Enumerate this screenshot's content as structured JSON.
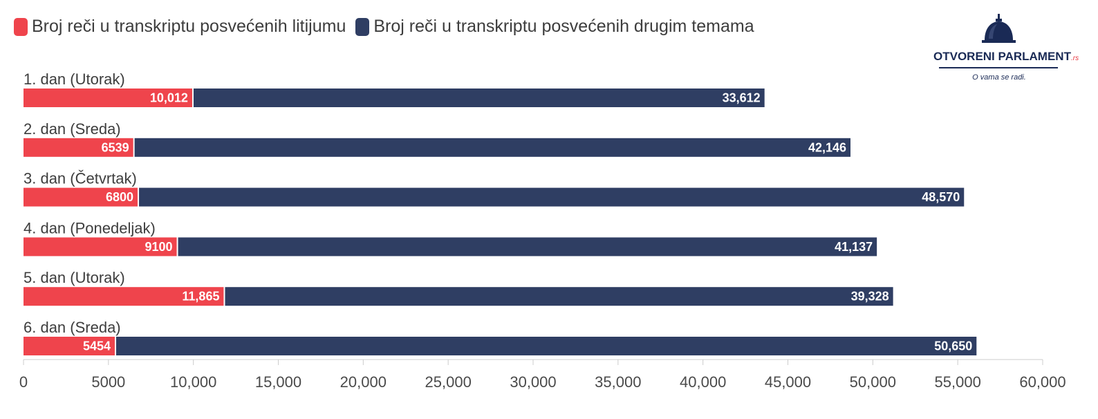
{
  "legend": [
    {
      "label": "Broj reči u transkriptu posvećenih litijumu",
      "color": "#ef444c"
    },
    {
      "label": "Broj reči u transkriptu posvećenih drugim temama",
      "color": "#2f3e63"
    }
  ],
  "logo": {
    "name_main": "OTVORENI PARLAMENT",
    "name_suffix": ".rs",
    "tagline": "O vama se radi."
  },
  "chart_data": {
    "type": "bar",
    "orientation": "horizontal",
    "stacked": true,
    "categories": [
      "1. dan (Utorak)",
      "2. dan (Sreda)",
      "3. dan (Četvrtak)",
      "4. dan (Ponedeljak)",
      "5. dan (Utorak)",
      "6. dan (Sreda)"
    ],
    "series": [
      {
        "name": "Broj reči u transkriptu posvećenih litijumu",
        "color": "#ef444c",
        "values": [
          10012,
          6539,
          6800,
          9100,
          11865,
          5454
        ],
        "labels": [
          "10,012",
          "6539",
          "6800",
          "9100",
          "11,865",
          "5454"
        ]
      },
      {
        "name": "Broj reči u transkriptu posvećenih drugim temama",
        "color": "#2f3e63",
        "values": [
          33612,
          42146,
          48570,
          41137,
          39328,
          50650
        ],
        "labels": [
          "33,612",
          "42,146",
          "48,570",
          "41,137",
          "39,328",
          "50,650"
        ]
      }
    ],
    "xlim": [
      0,
      60000
    ],
    "ticks": [
      0,
      5000,
      10000,
      15000,
      20000,
      25000,
      30000,
      35000,
      40000,
      45000,
      50000,
      55000,
      60000
    ],
    "tick_labels": [
      "0",
      "5000",
      "10,000",
      "15,000",
      "20,000",
      "25,000",
      "30,000",
      "35,000",
      "40,000",
      "45,000",
      "50,000",
      "55,000",
      "60,000"
    ],
    "grid": false,
    "legend_position": "top-left",
    "title": "",
    "xlabel": "",
    "ylabel": ""
  }
}
